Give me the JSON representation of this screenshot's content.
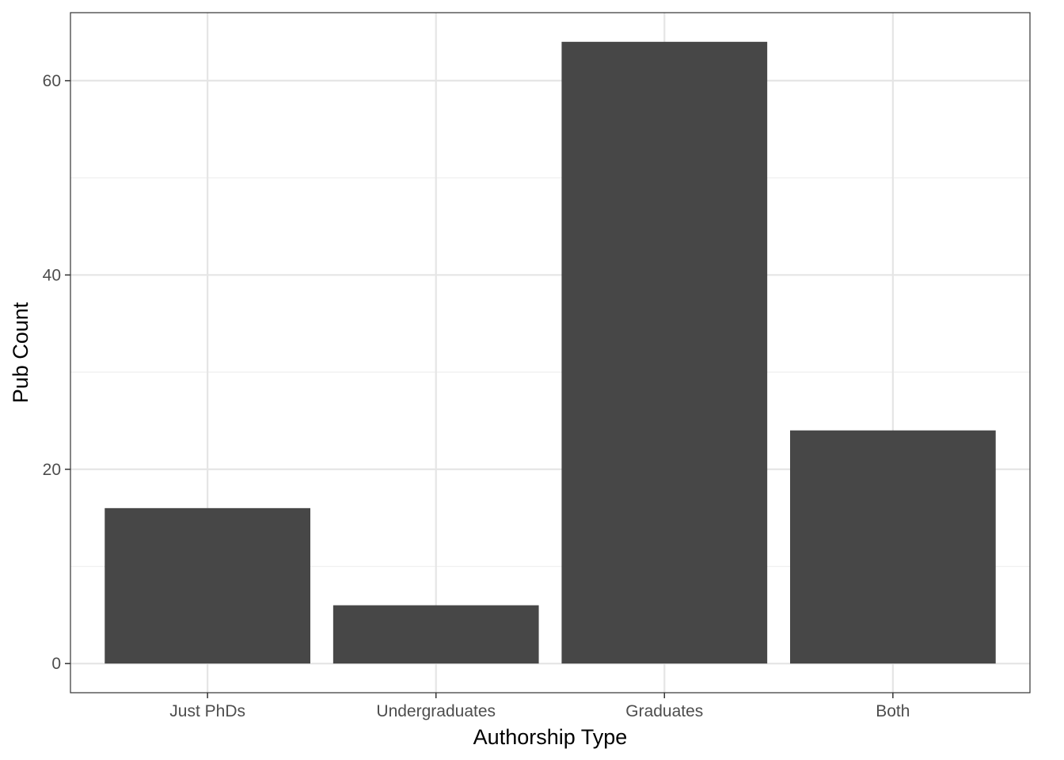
{
  "chart_data": {
    "type": "bar",
    "title": "",
    "xlabel": "Authorship Type",
    "ylabel": "Pub Count",
    "categories": [
      "Just PhDs",
      "Undergraduates",
      "Graduates",
      "Both"
    ],
    "values": [
      16,
      6,
      64,
      24
    ],
    "ylim": [
      -3,
      67
    ],
    "yticks": [
      0,
      20,
      40,
      60
    ],
    "y_minor_ticks": [
      10,
      30,
      50
    ],
    "grid": true,
    "legend": "none",
    "colors": {
      "bar": "#474747",
      "grid_major": "#e5e5e5",
      "grid_minor": "#f0f0f0",
      "panel_border": "#333333",
      "tick_text": "#4d4d4d"
    }
  }
}
